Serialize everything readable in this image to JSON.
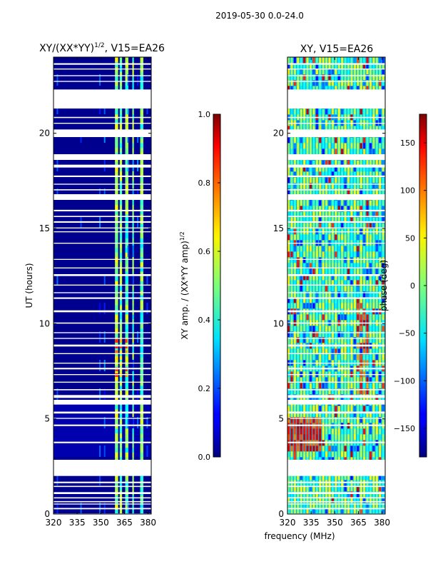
{
  "figure": {
    "suptitle": "2019-05-30 0.0-24.0",
    "xlabel": "frequency (MHz)"
  },
  "chart_data": [
    {
      "type": "heatmap",
      "title_main": "XY/(XX*YY)",
      "title_sup": "1/2",
      "title_rest": ", V15=EA26",
      "xlabel": "",
      "ylabel": "UT (hours)",
      "x_ticks": [
        "320",
        "335",
        "350",
        "365",
        "380"
      ],
      "x_tick_values": [
        320,
        335,
        350,
        365,
        380
      ],
      "y_ticks": [
        "0",
        "5",
        "10",
        "15",
        "20"
      ],
      "y_tick_values": [
        0,
        5,
        10,
        15,
        20
      ],
      "xlim": [
        320,
        382
      ],
      "ylim": [
        0,
        24
      ],
      "colorbar": {
        "label_main": "XY amp. / (XX*YY amp)",
        "label_sup": "1/2",
        "ticks": [
          "0.0",
          "0.2",
          "0.4",
          "0.6",
          "0.8",
          "1.0"
        ],
        "tick_values": [
          0.0,
          0.2,
          0.4,
          0.6,
          0.8,
          1.0
        ],
        "range": [
          0.0,
          1.0
        ]
      },
      "colormap": "jet",
      "bright_channel_bands_mhz": [
        [
          359,
          361
        ],
        [
          362,
          363.5
        ],
        [
          365.5,
          367.5
        ],
        [
          370,
          371
        ],
        [
          375,
          377
        ]
      ],
      "high_value_region": {
        "freq_mhz": [
          359,
          367
        ],
        "ut_hours": [
          7.2,
          9.2
        ],
        "value": 0.85
      }
    },
    {
      "type": "heatmap",
      "title": "XY, V15=EA26",
      "xlabel": "",
      "ylabel": "",
      "x_ticks": [
        "320",
        "335",
        "350",
        "365",
        "380"
      ],
      "x_tick_values": [
        320,
        335,
        350,
        365,
        380
      ],
      "y_ticks": [
        "0",
        "5",
        "10",
        "15",
        "20"
      ],
      "y_tick_values": [
        0,
        5,
        10,
        15,
        20
      ],
      "xlim": [
        320,
        382
      ],
      "ylim": [
        0,
        24
      ],
      "colorbar": {
        "label": "phase (deg)",
        "ticks": [
          "−150",
          "−100",
          "−50",
          "0",
          "50",
          "100",
          "150"
        ],
        "tick_values": [
          -150,
          -100,
          -50,
          0,
          50,
          100,
          150
        ],
        "range": [
          -180,
          180
        ]
      },
      "colormap": "jet",
      "warm_region": {
        "freq_mhz": [
          320,
          340
        ],
        "ut_hours": [
          3.2,
          5.0
        ],
        "value_deg": 120
      }
    }
  ],
  "data_gaps_ut_hours": [
    [
      0.0,
      0.03
    ],
    [
      0.25,
      0.32
    ],
    [
      0.5,
      0.55
    ],
    [
      0.62,
      0.68
    ],
    [
      0.82,
      0.88
    ],
    [
      1.05,
      1.15
    ],
    [
      1.42,
      1.48
    ],
    [
      1.62,
      1.7
    ],
    [
      2.0,
      2.85
    ],
    [
      3.72,
      3.8
    ],
    [
      4.62,
      4.7
    ],
    [
      5.0,
      5.05
    ],
    [
      5.28,
      5.38
    ],
    [
      5.75,
      6.0
    ],
    [
      6.1,
      6.25
    ],
    [
      6.5,
      6.56
    ],
    [
      6.9,
      6.95
    ],
    [
      7.3,
      7.35
    ],
    [
      7.6,
      7.68
    ],
    [
      7.9,
      7.95
    ],
    [
      8.4,
      8.45
    ],
    [
      8.8,
      8.9
    ],
    [
      9.2,
      9.25
    ],
    [
      9.5,
      9.55
    ],
    [
      10.0,
      10.06
    ],
    [
      10.6,
      10.7
    ],
    [
      11.3,
      11.38
    ],
    [
      11.6,
      11.65
    ],
    [
      12.0,
      12.05
    ],
    [
      12.5,
      12.6
    ],
    [
      12.9,
      12.95
    ],
    [
      13.35,
      13.4
    ],
    [
      14.2,
      14.25
    ],
    [
      14.8,
      14.85
    ],
    [
      15.0,
      15.05
    ],
    [
      15.3,
      15.38
    ],
    [
      15.6,
      15.66
    ],
    [
      15.9,
      15.98
    ],
    [
      16.5,
      16.8
    ],
    [
      17.0,
      17.06
    ],
    [
      17.3,
      17.35
    ],
    [
      17.7,
      17.78
    ],
    [
      18.2,
      18.35
    ],
    [
      18.6,
      18.9
    ],
    [
      19.8,
      20.2
    ],
    [
      20.5,
      20.55
    ],
    [
      20.8,
      20.86
    ],
    [
      21.3,
      22.3
    ],
    [
      22.7,
      22.75
    ],
    [
      23.0,
      23.05
    ],
    [
      23.35,
      23.4
    ],
    [
      23.6,
      23.68
    ]
  ]
}
